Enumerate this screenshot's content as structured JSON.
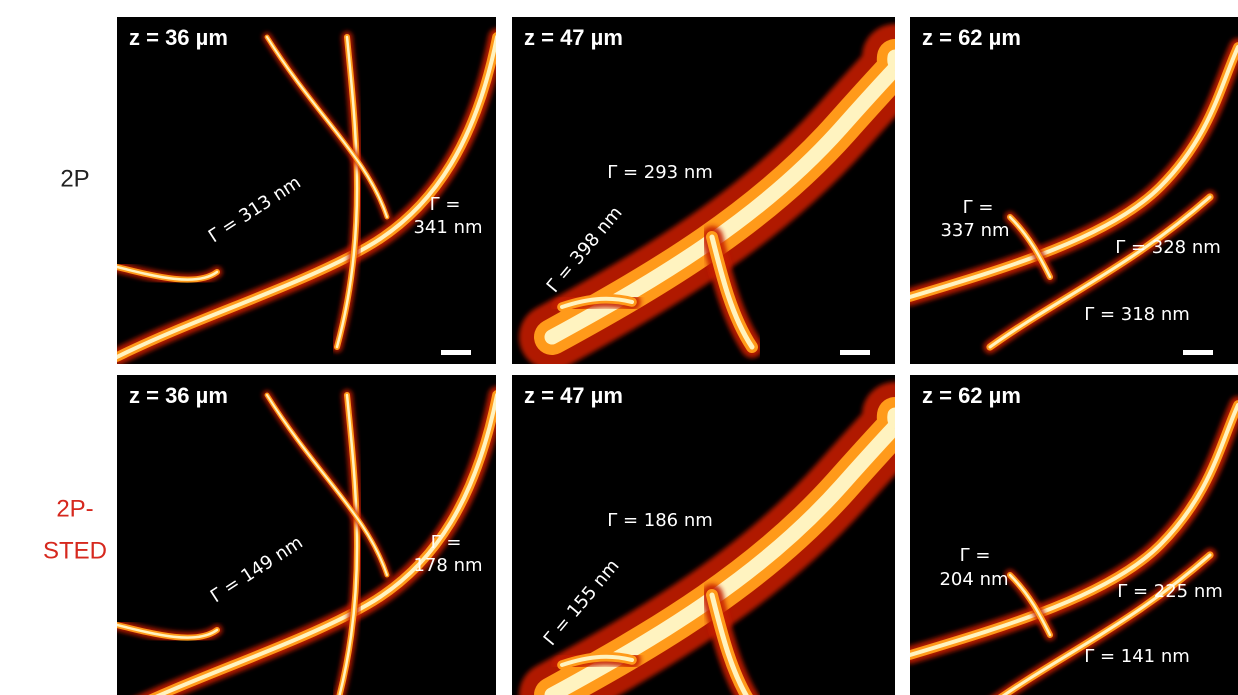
{
  "row_labels": [
    [
      "2P"
    ],
    [
      "2P-",
      "STED"
    ]
  ],
  "depth_labels": [
    "z = 36 µm",
    "z = 47 µm",
    "z = 62 µm"
  ],
  "panels": [
    [
      [
        [
          "Γ = 313 nm"
        ],
        [
          "Γ =",
          "341 nm"
        ]
      ],
      [
        [
          "Γ = 293 nm"
        ],
        [
          "Γ = 398 nm"
        ]
      ],
      [
        [
          "Γ =",
          "337 nm"
        ],
        [
          "Γ = 328 nm"
        ],
        [
          "Γ = 318 nm"
        ]
      ]
    ],
    [
      [
        [
          "Γ = 149 nm"
        ],
        [
          "Γ =",
          "178 nm"
        ]
      ],
      [
        [
          "Γ = 186 nm"
        ],
        [
          "Γ = 155 nm"
        ]
      ],
      [
        [
          "Γ =",
          "204 nm"
        ],
        [
          "Γ = 225 nm"
        ],
        [
          "Γ = 141 nm"
        ]
      ]
    ]
  ]
}
